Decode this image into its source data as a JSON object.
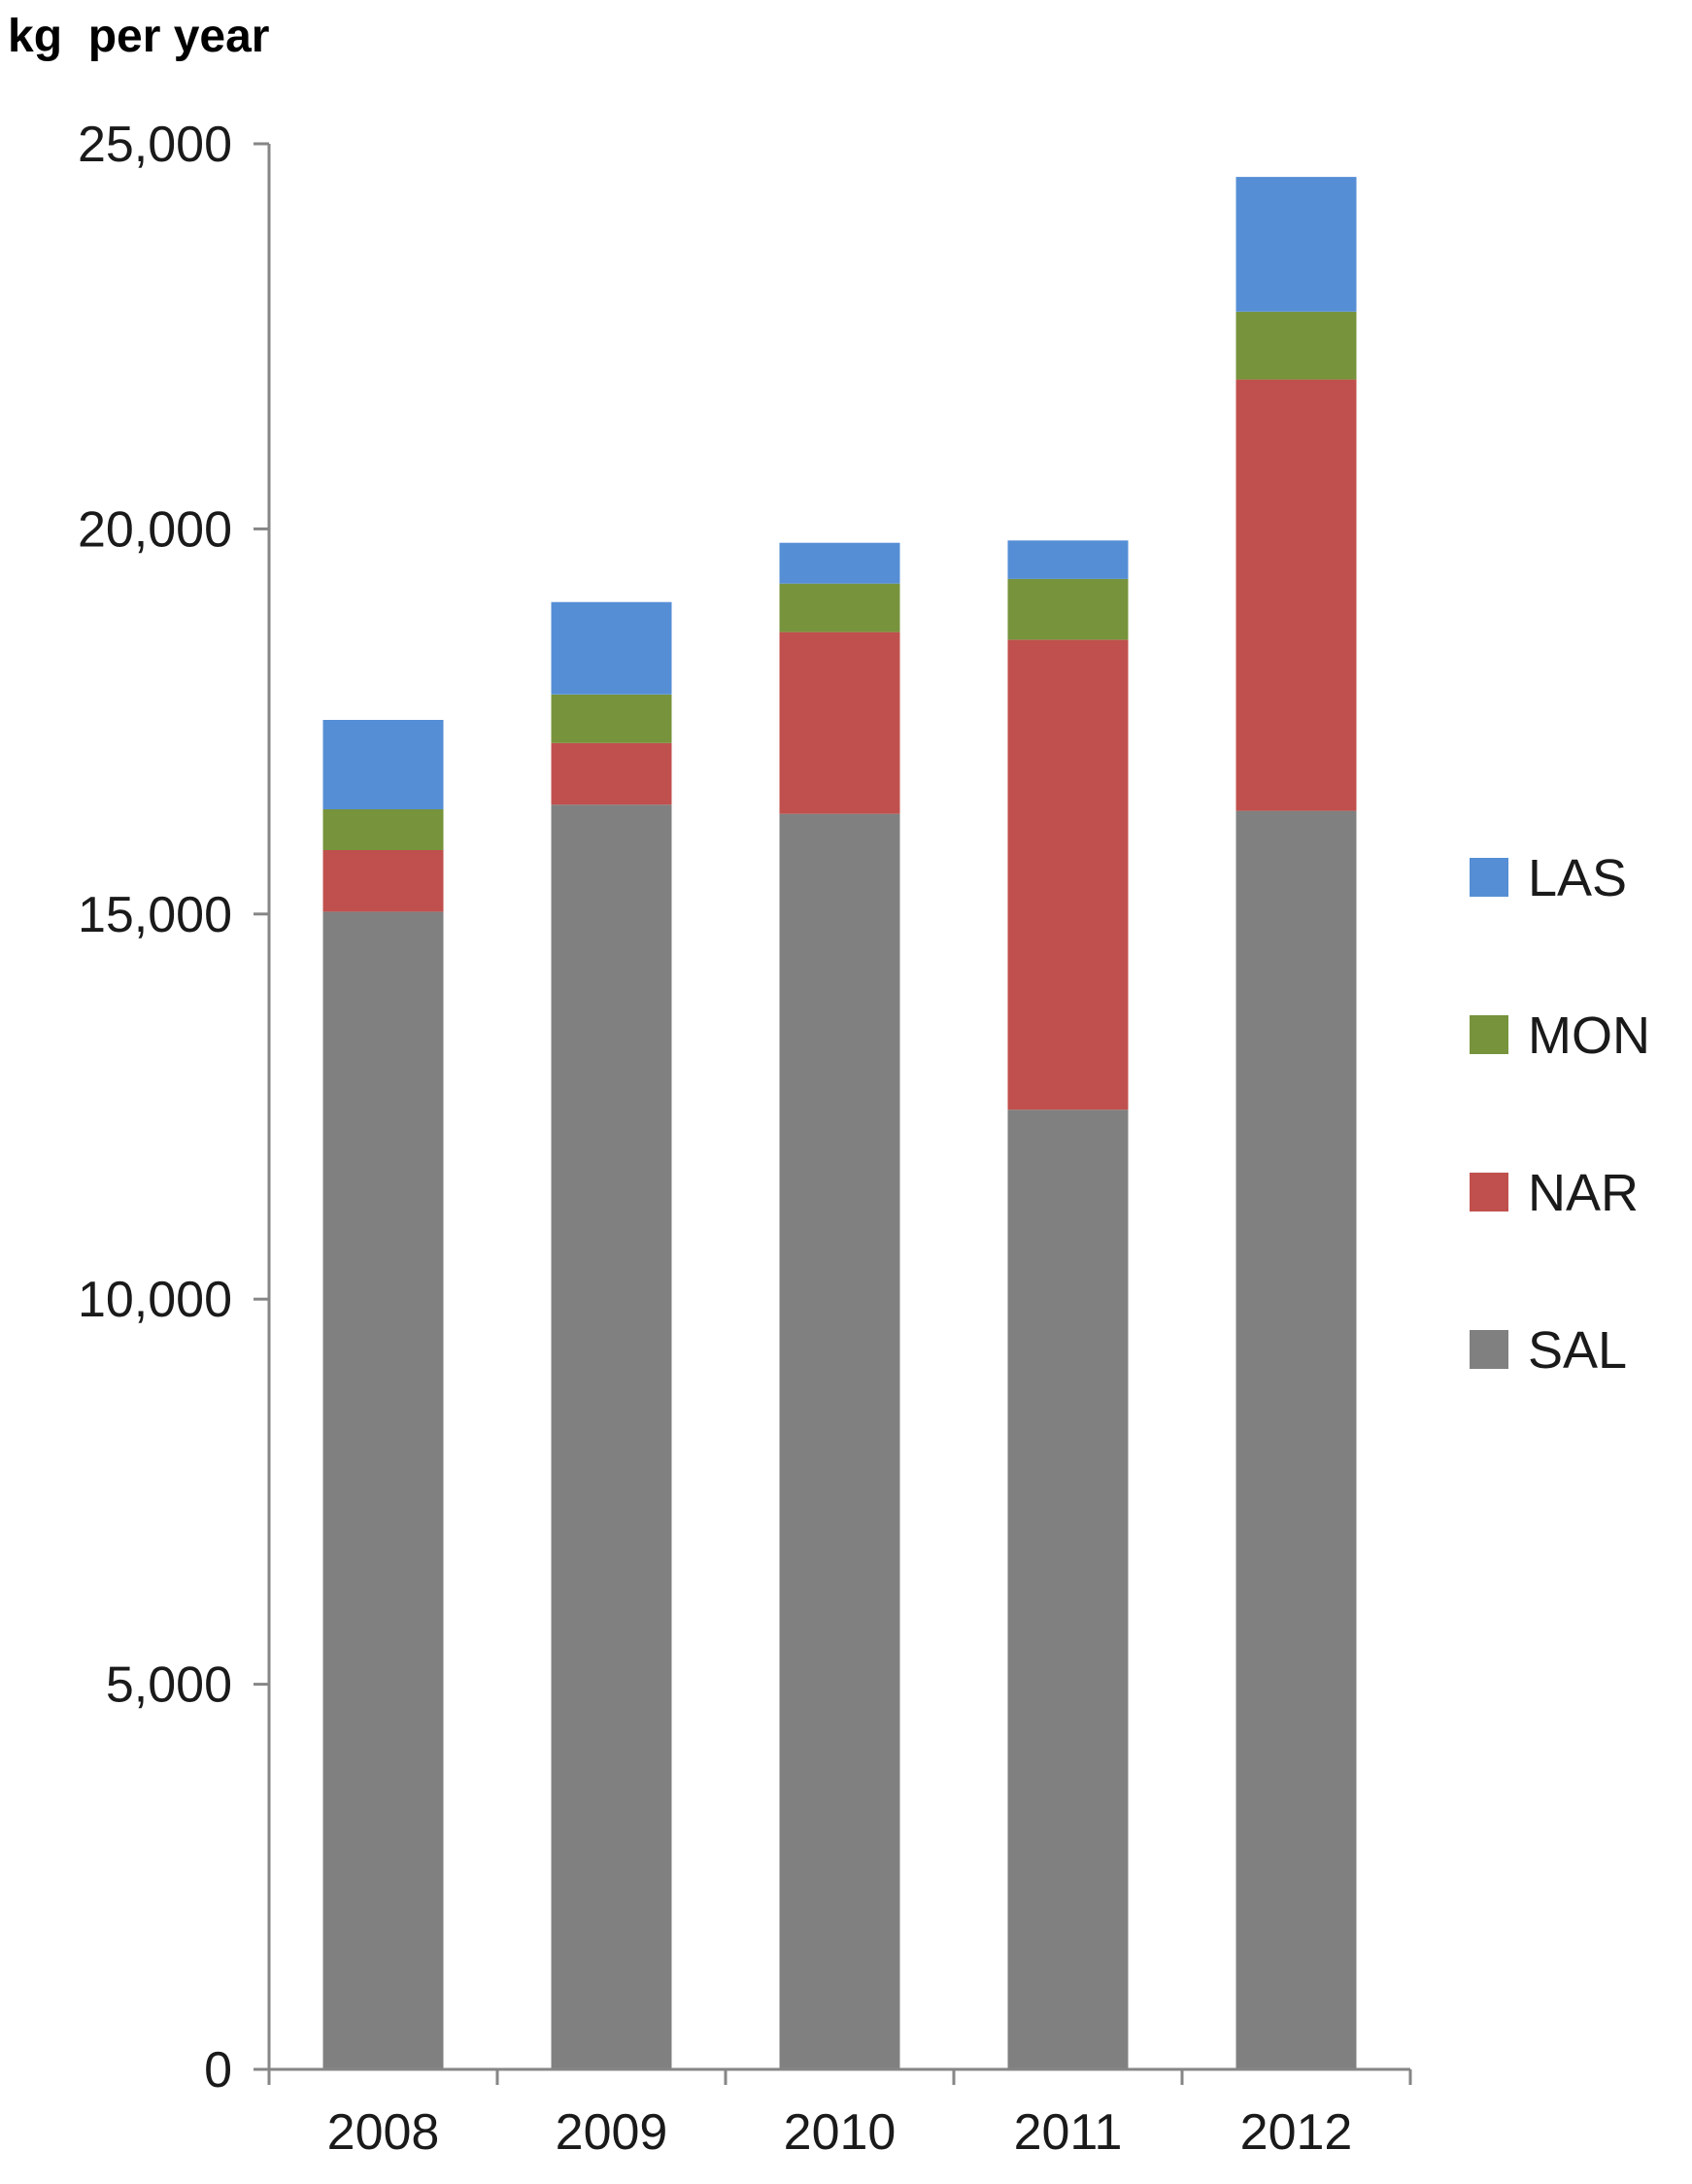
{
  "chart_data": {
    "type": "bar",
    "stacked": true,
    "title": "",
    "xlabel": "",
    "ylabel": "kg  per year",
    "ylim": [
      0,
      25000
    ],
    "yticks": [
      0,
      5000,
      10000,
      15000,
      20000,
      25000
    ],
    "ytick_labels": [
      "0",
      "5,000",
      "10,000",
      "15,000",
      "20,000",
      "25,000"
    ],
    "categories": [
      "2008",
      "2009",
      "2010",
      "2011",
      "2012"
    ],
    "series": [
      {
        "name": "SAL",
        "color": "#808080",
        "values": [
          15030,
          16420,
          16300,
          12460,
          16340
        ]
      },
      {
        "name": "NAR",
        "color": "#C0504D",
        "values": [
          800,
          800,
          2360,
          6100,
          5600
        ]
      },
      {
        "name": "MON",
        "color": "#77933C",
        "values": [
          530,
          630,
          630,
          790,
          880
        ]
      },
      {
        "name": "LAS",
        "color": "#558ED5",
        "values": [
          1160,
          1200,
          530,
          500,
          1750
        ]
      }
    ],
    "legend": {
      "position": "right",
      "order": [
        "LAS",
        "MON",
        "NAR",
        "SAL"
      ]
    },
    "grid": false
  }
}
